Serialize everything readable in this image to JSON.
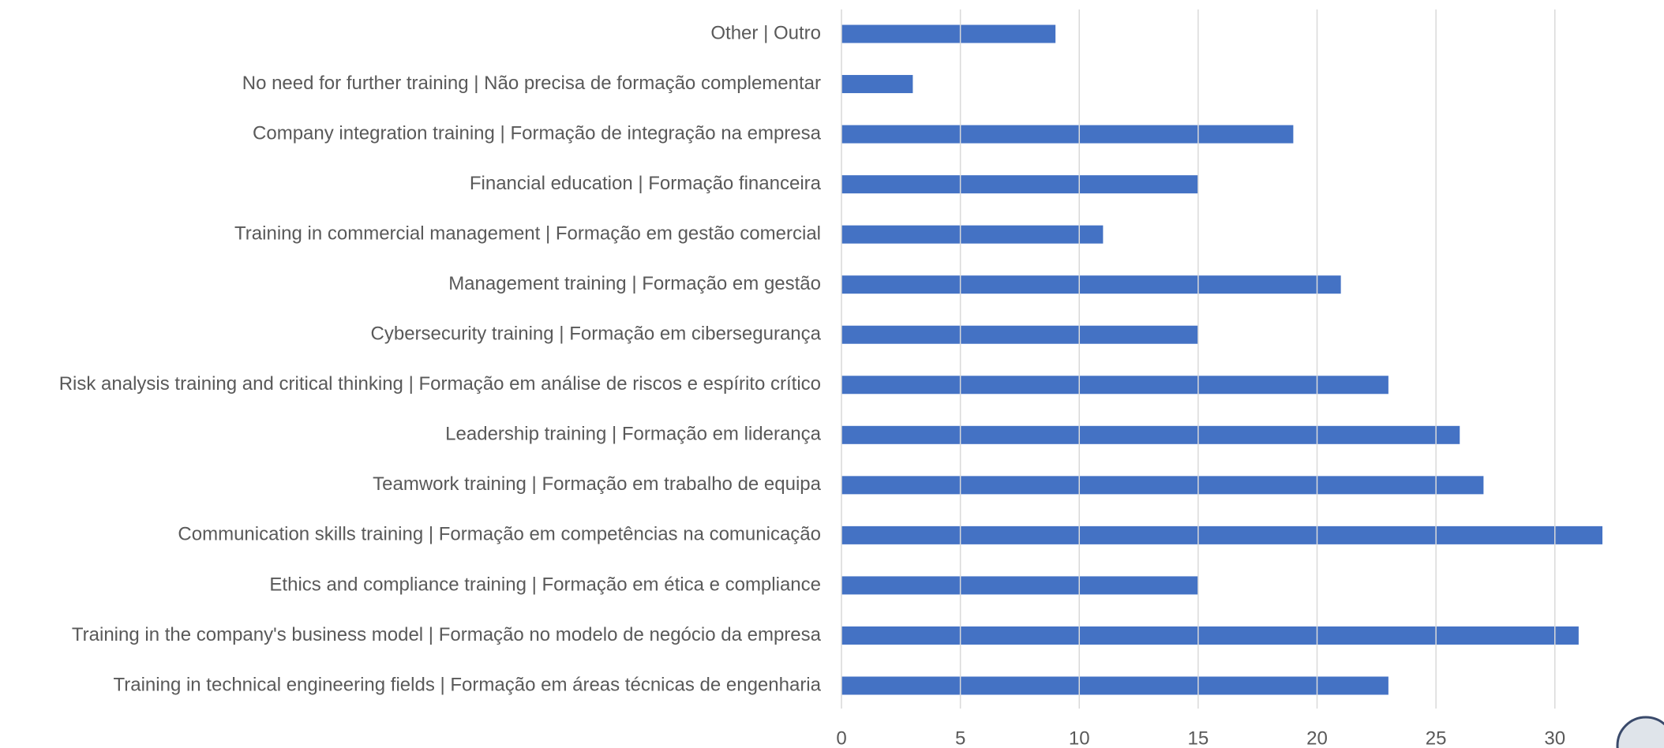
{
  "chart_data": {
    "type": "bar",
    "orientation": "horizontal",
    "categories": [
      "Other | Outro",
      "No need for further training | Não precisa de formação complementar",
      "Company integration training | Formação de integração na empresa",
      "Financial education | Formação financeira",
      "Training in commercial management | Formação em gestão comercial",
      "Management training | Formação em gestão",
      "Cybersecurity training | Formação em cibersegurança",
      "Risk analysis training and critical thinking | Formação em análise de riscos e espírito crítico",
      "Leadership training | Formação em liderança",
      "Teamwork training | Formação em trabalho de equipa",
      "Communication skills training | Formação em competências na comunicação",
      "Ethics and compliance training | Formação em ética e compliance",
      "Training in the company's business model | Formação no modelo de negócio da empresa",
      "Training in technical engineering fields | Formação em áreas técnicas de engenharia"
    ],
    "values": [
      9,
      3,
      19,
      15,
      11,
      21,
      15,
      23,
      26,
      27,
      32,
      15,
      31,
      23
    ],
    "color": "#4472c4",
    "xlim": [
      0,
      32
    ],
    "xticks": [
      0,
      5,
      10,
      15,
      20,
      25,
      30
    ],
    "grid": true
  }
}
